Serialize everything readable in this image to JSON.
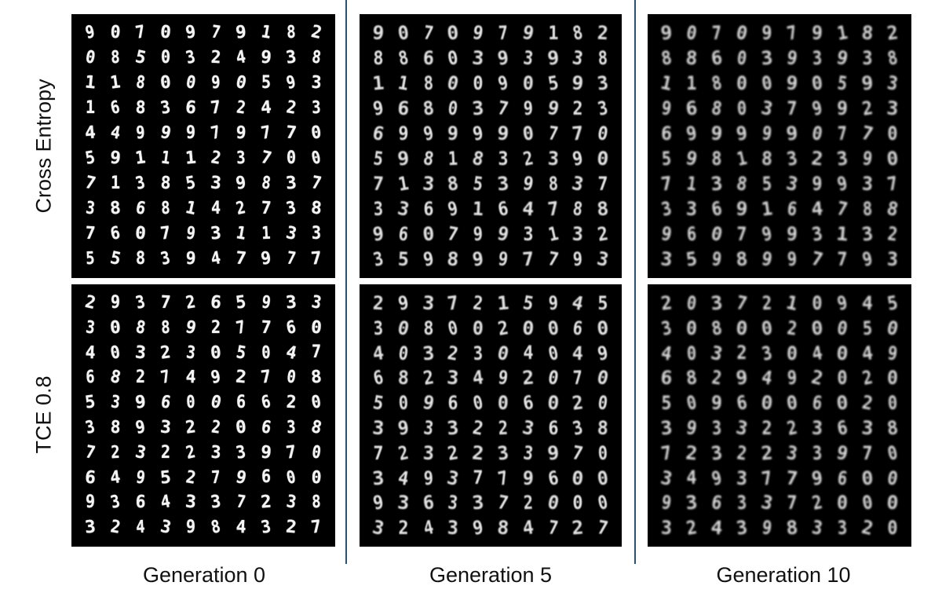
{
  "row_labels": [
    "Cross Entropy",
    "TCE 0.8"
  ],
  "column_labels": [
    "Generation 0",
    "Generation 5",
    "Generation 10"
  ],
  "panels": [
    {
      "row": "Cross Entropy",
      "generation": "Generation 0",
      "digits": [
        "9070979182",
        "0850324938",
        "1180090593",
        "1683672423",
        "4499979770",
        "5911123700",
        "7138539837",
        "3868142738",
        "7607931133",
        "5583947977"
      ]
    },
    {
      "row": "Cross Entropy",
      "generation": "Generation 5",
      "digits": [
        "9070979182",
        "8860393938",
        "1180090593",
        "9680379923",
        "6999990770",
        "5981832390",
        "7138539837",
        "3369164788",
        "9607993132",
        "3598997793"
      ]
    },
    {
      "row": "Cross Entropy",
      "generation": "Generation 10",
      "digits": [
        "9070979182",
        "8860393938",
        "1180090593",
        "9680379923",
        "6999990770",
        "5981832390",
        "7138539937",
        "3369164788",
        "9607993132",
        "3598997793"
      ]
    },
    {
      "row": "TCE 0.8",
      "generation": "Generation 0",
      "digits": [
        "2937265933",
        "3088927760",
        "4032305047",
        "6827492708",
        "5396006620",
        "3893220638",
        "7232233970",
        "6495279600",
        "9364337238",
        "3243984327"
      ]
    },
    {
      "row": "TCE 0.8",
      "generation": "Generation 5",
      "digits": [
        "2937215945",
        "3080020060",
        "4032304049",
        "6823492070",
        "5096006020",
        "3933223638",
        "7232233970",
        "3493779600",
        "9363372000",
        "3243984727"
      ]
    },
    {
      "row": "TCE 0.8",
      "generation": "Generation 10",
      "digits": [
        "2037210945",
        "3080020050",
        "4032304049",
        "6829492020",
        "5096006020",
        "3933223638",
        "7232233970",
        "3493779600",
        "9363372000",
        "3243983320"
      ]
    }
  ]
}
